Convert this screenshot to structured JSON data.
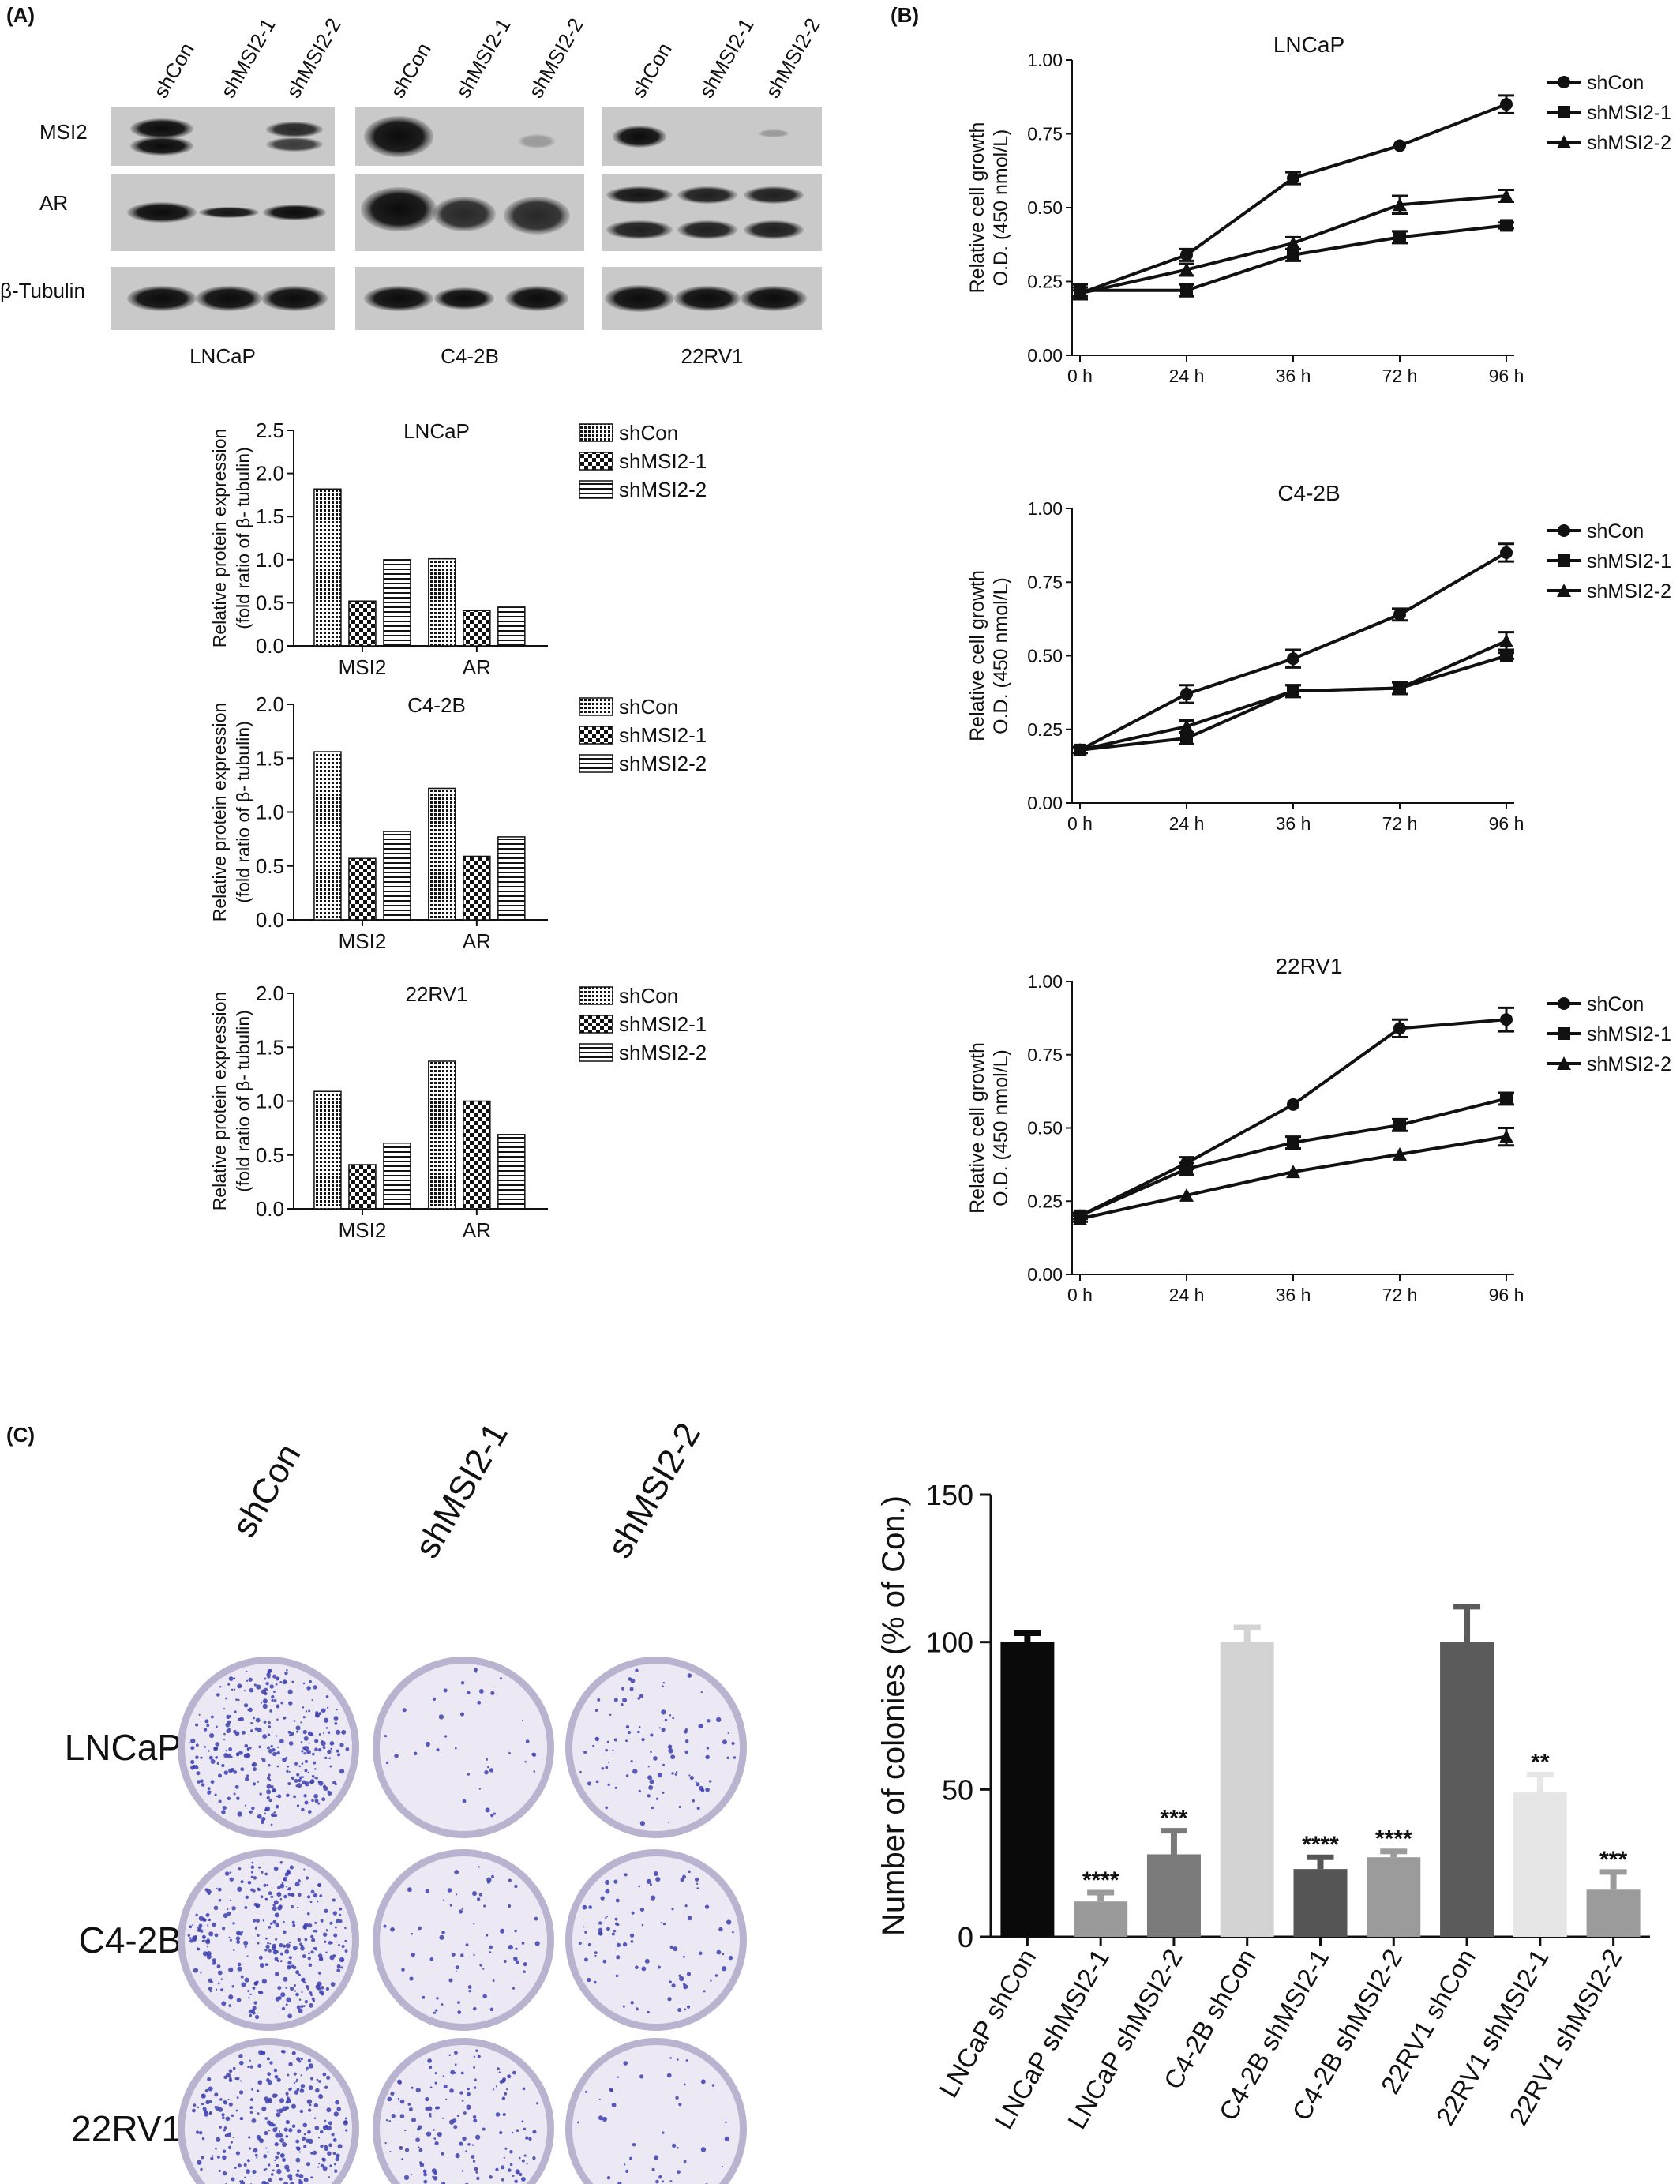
{
  "panels": {
    "a": "(A)",
    "b": "(B)",
    "c": "(C)"
  },
  "western_blot": {
    "lanes": [
      "shCon",
      "shMSI2-1",
      "shMSI2-2"
    ],
    "row_labels": [
      "MSI2",
      "AR",
      "β-Tubulin"
    ],
    "cell_lines": [
      "LNCaP",
      "C4-2B",
      "22RV1"
    ]
  },
  "dish_grid": {
    "column_labels": [
      "shCon",
      "shMSI2-1",
      "shMSI2-2"
    ],
    "row_labels": [
      "LNCaP",
      "C4-2B",
      "22RV1"
    ],
    "colony_density": [
      [
        1.0,
        0.12,
        0.3
      ],
      [
        1.0,
        0.22,
        0.28
      ],
      [
        1.0,
        0.5,
        0.15
      ]
    ],
    "colors": {
      "dish_rim": "#b9b3cf",
      "dish_fill": "#ece9f4",
      "colony": "#3c3fae"
    }
  },
  "chart_data": [
    {
      "id": "bar-lncap",
      "type": "bar",
      "title": "LNCaP",
      "ylabel": "Relative protein expression\n(fold ratio of β- tubulin)",
      "categories": [
        "MSI2",
        "AR"
      ],
      "ylim": [
        0,
        2.5
      ],
      "yticks": [
        "0.0",
        "0.5",
        "1.0",
        "1.5",
        "2.0",
        "2.5"
      ],
      "series": [
        {
          "name": "shCon",
          "values": [
            1.82,
            1.01
          ]
        },
        {
          "name": "shMSI2-1",
          "values": [
            0.52,
            0.41
          ]
        },
        {
          "name": "shMSI2-2",
          "values": [
            1.0,
            0.45
          ]
        }
      ],
      "legend": "right"
    },
    {
      "id": "bar-c42b",
      "type": "bar",
      "title": "C4-2B",
      "ylabel": "Relative protein expression\n(fold ratio of β- tubulin)",
      "categories": [
        "MSI2",
        "AR"
      ],
      "ylim": [
        0,
        2.0
      ],
      "yticks": [
        "0.0",
        "0.5",
        "1.0",
        "1.5",
        "2.0"
      ],
      "series": [
        {
          "name": "shCon",
          "values": [
            1.56,
            1.22
          ]
        },
        {
          "name": "shMSI2-1",
          "values": [
            0.57,
            0.59
          ]
        },
        {
          "name": "shMSI2-2",
          "values": [
            0.82,
            0.77
          ]
        }
      ],
      "legend": "right"
    },
    {
      "id": "bar-22rv1",
      "type": "bar",
      "title": "22RV1",
      "ylabel": "Relative protein expression\n(fold ratio of β- tubulin)",
      "categories": [
        "MSI2",
        "AR"
      ],
      "ylim": [
        0,
        2.0
      ],
      "yticks": [
        "0.0",
        "0.5",
        "1.0",
        "1.5",
        "2.0"
      ],
      "series": [
        {
          "name": "shCon",
          "values": [
            1.09,
            1.37
          ]
        },
        {
          "name": "shMSI2-1",
          "values": [
            0.41,
            1.0
          ]
        },
        {
          "name": "shMSI2-2",
          "values": [
            0.61,
            0.69
          ]
        }
      ],
      "legend": "right"
    },
    {
      "id": "line-lncap",
      "type": "line",
      "title": "LNCaP",
      "ylabel": "Relative cell growth\nO.D. (450 nmol/L)",
      "categories": [
        "0 h",
        "24 h",
        "36 h",
        "72 h",
        "96 h"
      ],
      "ylim": [
        0,
        1.0
      ],
      "yticks": [
        "0.00",
        "0.25",
        "0.50",
        "0.75",
        "1.00"
      ],
      "series": [
        {
          "name": "shCon",
          "marker": "circle",
          "values": [
            0.21,
            0.34,
            0.6,
            0.71,
            0.85
          ],
          "errors": [
            0.02,
            0.02,
            0.02,
            0.0,
            0.03
          ]
        },
        {
          "name": "shMSI2-1",
          "marker": "square",
          "values": [
            0.22,
            0.22,
            0.34,
            0.4,
            0.44
          ],
          "errors": [
            0.02,
            0.02,
            0.02,
            0.02,
            0.01
          ]
        },
        {
          "name": "shMSI2-2",
          "marker": "triangle",
          "values": [
            0.21,
            0.29,
            0.38,
            0.51,
            0.54
          ],
          "errors": [
            0.01,
            0.02,
            0.02,
            0.03,
            0.02
          ]
        }
      ],
      "legend": "right"
    },
    {
      "id": "line-c42b",
      "type": "line",
      "title": "C4-2B",
      "ylabel": "Relative cell growth\nO.D. (450 nmol/L)",
      "categories": [
        "0 h",
        "24 h",
        "36 h",
        "72 h",
        "96 h"
      ],
      "ylim": [
        0,
        1.0
      ],
      "yticks": [
        "0.00",
        "0.25",
        "0.50",
        "0.75",
        "1.00"
      ],
      "series": [
        {
          "name": "shCon",
          "marker": "circle",
          "values": [
            0.18,
            0.37,
            0.49,
            0.64,
            0.85
          ],
          "errors": [
            0.01,
            0.03,
            0.03,
            0.02,
            0.03
          ]
        },
        {
          "name": "shMSI2-1",
          "marker": "square",
          "values": [
            0.18,
            0.22,
            0.38,
            0.39,
            0.5
          ],
          "errors": [
            0.01,
            0.02,
            0.02,
            0.02,
            0.01
          ]
        },
        {
          "name": "shMSI2-2",
          "marker": "triangle",
          "values": [
            0.18,
            0.26,
            0.38,
            0.39,
            0.55
          ],
          "errors": [
            0.01,
            0.02,
            0.02,
            0.02,
            0.03
          ]
        }
      ],
      "legend": "right"
    },
    {
      "id": "line-22rv1",
      "type": "line",
      "title": "22RV1",
      "ylabel": "Relative cell growth\nO.D. (450 nmol/L)",
      "categories": [
        "0 h",
        "24 h",
        "36 h",
        "72 h",
        "96 h"
      ],
      "ylim": [
        0,
        1.0
      ],
      "yticks": [
        "0.00",
        "0.25",
        "0.50",
        "0.75",
        "1.00"
      ],
      "series": [
        {
          "name": "shCon",
          "marker": "circle",
          "values": [
            0.2,
            0.38,
            0.58,
            0.84,
            0.87
          ],
          "errors": [
            0.01,
            0.02,
            0.0,
            0.03,
            0.04
          ]
        },
        {
          "name": "shMSI2-1",
          "marker": "square",
          "values": [
            0.2,
            0.36,
            0.45,
            0.51,
            0.6
          ],
          "errors": [
            0.01,
            0.02,
            0.02,
            0.02,
            0.02
          ]
        },
        {
          "name": "shMSI2-2",
          "marker": "triangle",
          "values": [
            0.19,
            0.27,
            0.35,
            0.41,
            0.47
          ],
          "errors": [
            0.01,
            0.0,
            0.0,
            0.0,
            0.03
          ]
        }
      ],
      "legend": "right"
    },
    {
      "id": "bar-colonies",
      "type": "bar",
      "ylabel": "Number of colonies (% of Con.)",
      "categories": [
        "LNCaP shCon",
        "LNCaP shMSI2-1",
        "LNCaP shMSI2-2",
        "C4-2B shCon",
        "C4-2B shMSI2-1",
        "C4-2B shMSI2-2",
        "22RV1 shCon",
        "22RV1 shMSI2-1",
        "22RV1 shMSI2-2"
      ],
      "values": [
        100,
        12,
        28,
        100,
        23,
        27,
        100,
        49,
        16
      ],
      "errors": [
        3,
        3,
        8,
        5,
        4,
        2,
        12,
        6,
        6
      ],
      "significance": [
        "",
        "****",
        "***",
        "",
        "****",
        "****",
        "",
        "**",
        "***"
      ],
      "colors": [
        "#0a0a0a",
        "#9a9a9a",
        "#7a7a7a",
        "#d3d3d3",
        "#555555",
        "#9b9b9b",
        "#5b5b5b",
        "#e6e6e6",
        "#9b9b9b"
      ],
      "ylim": [
        0,
        150
      ],
      "yticks": [
        "0",
        "50",
        "100",
        "150"
      ]
    }
  ]
}
